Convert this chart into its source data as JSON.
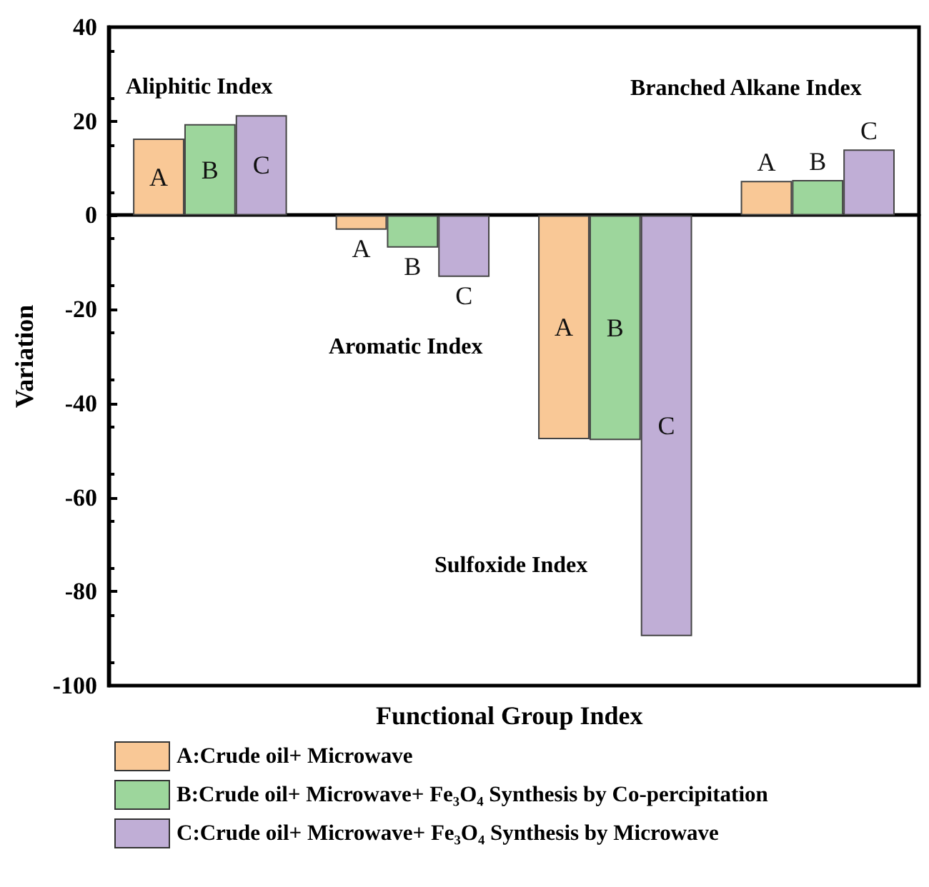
{
  "chart_data": {
    "type": "bar",
    "xlabel": "Functional Group Index",
    "ylabel": "Variation",
    "categories": [
      null,
      null,
      null,
      null
    ],
    "series": [
      {
        "name": "A:Crude oil+ Microwave",
        "color": "#f9c896",
        "values": [
          16.3,
          -3.1,
          -47.6,
          7.3
        ],
        "value_labels": [
          "A",
          "A",
          "A",
          "A"
        ]
      },
      {
        "name": "B:Crude oil+ Microwave+ Fe₃O₄ Synthesis by Co-percipitation",
        "color": "#9dd69c",
        "values": [
          19.4,
          -6.9,
          -47.8,
          7.5
        ],
        "value_labels": [
          "B",
          "B",
          "B",
          "B"
        ]
      },
      {
        "name": "C:Crude oil+ Microwave+ Fe₃O₄ Synthesis by Microwave",
        "color": "#c0aed6",
        "values": [
          21.3,
          -13.1,
          -89.5,
          14.0
        ],
        "value_labels": [
          "C",
          "C",
          "C",
          "C"
        ]
      }
    ],
    "annotations": [
      "Aliphitic Index",
      "Aromatic Index",
      "Sulfoxide Index",
      "Branched Alkane Index"
    ],
    "ylim": [
      -100,
      40
    ],
    "yticks": [
      -100,
      -80,
      -60,
      -40,
      -20,
      0,
      20,
      40
    ],
    "legend": "bottom"
  }
}
